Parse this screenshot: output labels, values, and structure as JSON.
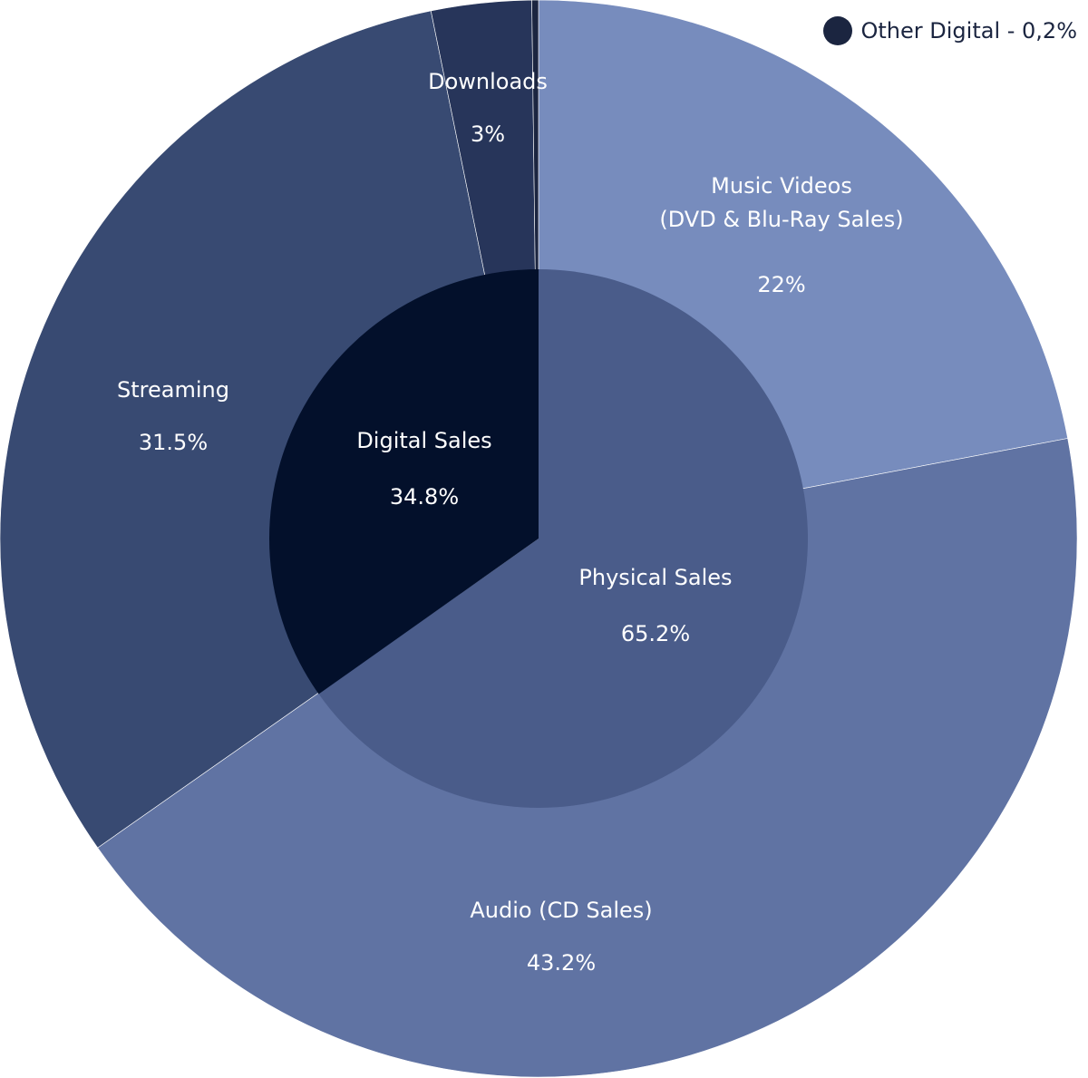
{
  "chart_data": {
    "type": "pie",
    "inner": [
      {
        "name": "Physical Sales",
        "value": 65.2,
        "value_label": "65.2%",
        "color": "#4a5c8a"
      },
      {
        "name": "Digital Sales",
        "value": 34.8,
        "value_label": "34.8%",
        "color": "#03102b"
      }
    ],
    "outer": [
      {
        "name": "Music Videos",
        "name_line2": "(DVD & Blu-Ray Sales)",
        "value": 22,
        "value_label": "22%",
        "color": "#778cbd"
      },
      {
        "name": "Audio (CD Sales)",
        "value": 43.2,
        "value_label": "43.2%",
        "color": "#6073a3"
      },
      {
        "name": "Streaming",
        "value": 31.5,
        "value_label": "31.5%",
        "color": "#384a72"
      },
      {
        "name": "Downloads",
        "value": 3,
        "value_label": "3%",
        "color": "#27355a"
      },
      {
        "name": "Other Digital",
        "value": 0.2,
        "value_label": "",
        "color": "#1b2540"
      }
    ],
    "legend": {
      "placement": "top-right",
      "items": [
        {
          "label": "Other Digital - 0,2%",
          "color": "#1b2540"
        }
      ]
    }
  }
}
